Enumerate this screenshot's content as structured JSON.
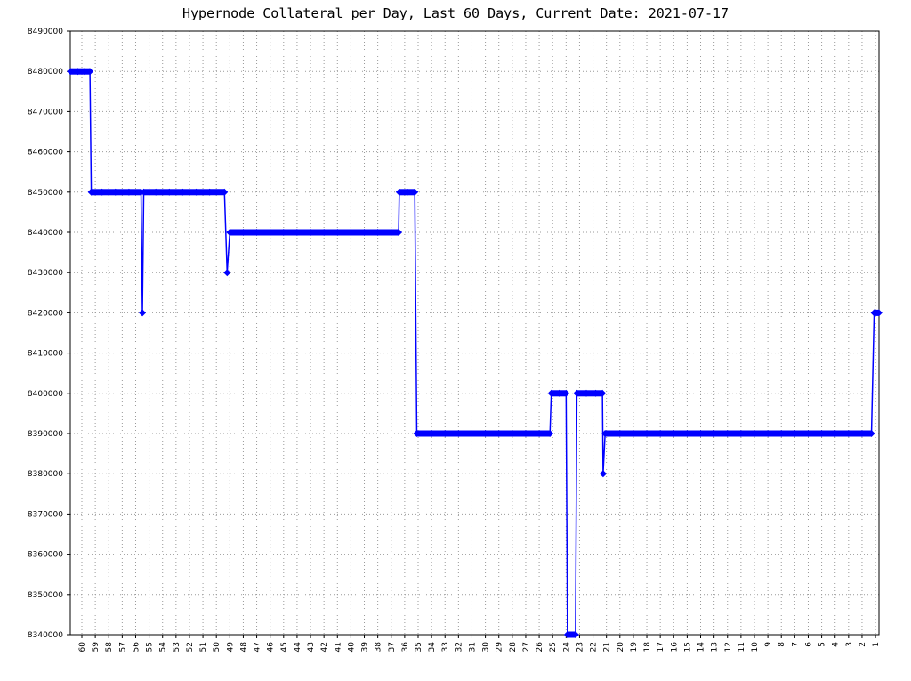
{
  "chart_data": {
    "type": "line",
    "title": "Hypernode Collateral per Day, Last 60 Days, Current Date: 2021-07-17",
    "x": [
      60.85,
      60.3,
      59.8,
      59.4,
      59.3,
      58.5,
      57.5,
      56.5,
      55.6,
      55.5,
      55.4,
      54.5,
      53.5,
      52.5,
      51.5,
      50.5,
      49.4,
      49.2,
      49.0,
      48,
      47,
      46,
      45,
      44,
      43,
      42,
      41,
      40,
      39,
      38,
      37,
      36.45,
      36.4,
      35.8,
      35.25,
      35.1,
      34,
      33,
      32,
      31,
      30,
      29,
      28,
      27,
      26,
      25.2,
      25.1,
      24.5,
      24.0,
      23.9,
      23.3,
      23.2,
      22.5,
      21.8,
      21.3,
      21.25,
      21.1,
      20,
      19,
      18,
      17,
      16,
      15,
      14,
      13,
      12,
      11,
      10,
      9,
      8,
      7,
      6,
      5,
      4,
      3,
      2,
      1.3,
      1.1,
      0.75
    ],
    "values": [
      8480000,
      8480000,
      8480000,
      8480000,
      8450000,
      8450000,
      8450000,
      8450000,
      8450000,
      8420000,
      8450000,
      8450000,
      8450000,
      8450000,
      8450000,
      8450000,
      8450000,
      8430000,
      8440000,
      8440000,
      8440000,
      8440000,
      8440000,
      8440000,
      8440000,
      8440000,
      8440000,
      8440000,
      8440000,
      8440000,
      8440000,
      8440000,
      8450000,
      8450000,
      8450000,
      8390000,
      8390000,
      8390000,
      8390000,
      8390000,
      8390000,
      8390000,
      8390000,
      8390000,
      8390000,
      8390000,
      8400000,
      8400000,
      8400000,
      8340000,
      8340000,
      8400000,
      8400000,
      8400000,
      8400000,
      8380000,
      8390000,
      8390000,
      8390000,
      8390000,
      8390000,
      8390000,
      8390000,
      8390000,
      8390000,
      8390000,
      8390000,
      8390000,
      8390000,
      8390000,
      8390000,
      8390000,
      8390000,
      8390000,
      8390000,
      8390000,
      8390000,
      8420000,
      8420000
    ],
    "color": "#0000ff",
    "xlim": [
      60.86,
      0.74
    ],
    "xticks": [
      60,
      59,
      58,
      57,
      56,
      55,
      54,
      53,
      52,
      51,
      50,
      49,
      48,
      47,
      46,
      45,
      44,
      43,
      42,
      41,
      40,
      39,
      38,
      37,
      36,
      35,
      34,
      33,
      32,
      31,
      30,
      29,
      28,
      27,
      26,
      25,
      24,
      23,
      22,
      21,
      20,
      19,
      18,
      17,
      16,
      15,
      14,
      13,
      12,
      11,
      10,
      9,
      8,
      7,
      6,
      5,
      4,
      3,
      2,
      1
    ],
    "ylim": [
      8340000,
      8490000
    ],
    "yticks": [
      8340000,
      8350000,
      8360000,
      8370000,
      8380000,
      8390000,
      8400000,
      8410000,
      8420000,
      8430000,
      8440000,
      8450000,
      8460000,
      8470000,
      8480000,
      8490000
    ],
    "grid": true
  }
}
